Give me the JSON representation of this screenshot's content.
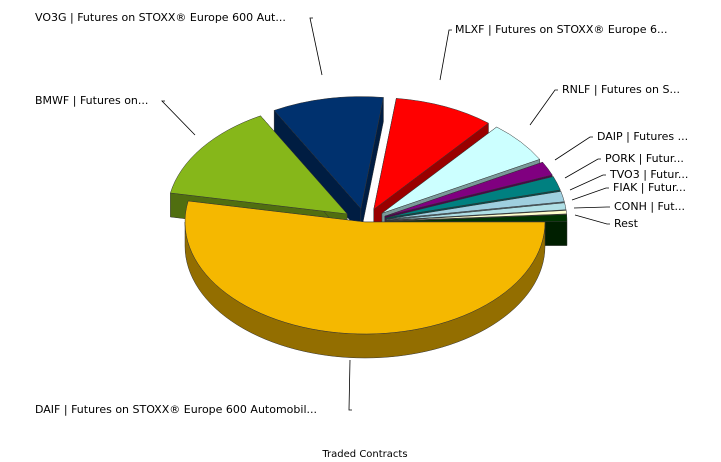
{
  "chart_data": {
    "type": "pie",
    "title": "Traded Contracts",
    "categories": [
      "DAIF | Futures on STOXX® Europe 600 Automobil...",
      "BMWF | Futures on...",
      "VO3G | Futures on STOXX® Europe 600 Aut...",
      "MLXF | Futures on STOXX® Europe 6...",
      "RNLF | Futures on S...",
      "DAIP | Futures ...",
      "PORK | Futur...",
      "TVO3 | Futur...",
      "FIAK | Futur...",
      "CONH | Fut...",
      "Rest"
    ],
    "values": [
      53,
      14,
      10,
      9,
      6,
      2,
      2,
      1.5,
      1,
      0.5,
      1
    ],
    "colors": [
      "#f5b800",
      "#86b71a",
      "#00316e",
      "#ff0000",
      "#ccffff",
      "#800080",
      "#008080",
      "#9fcfdf",
      "#b0e0e6",
      "#ffffcc",
      "#003300"
    ]
  }
}
